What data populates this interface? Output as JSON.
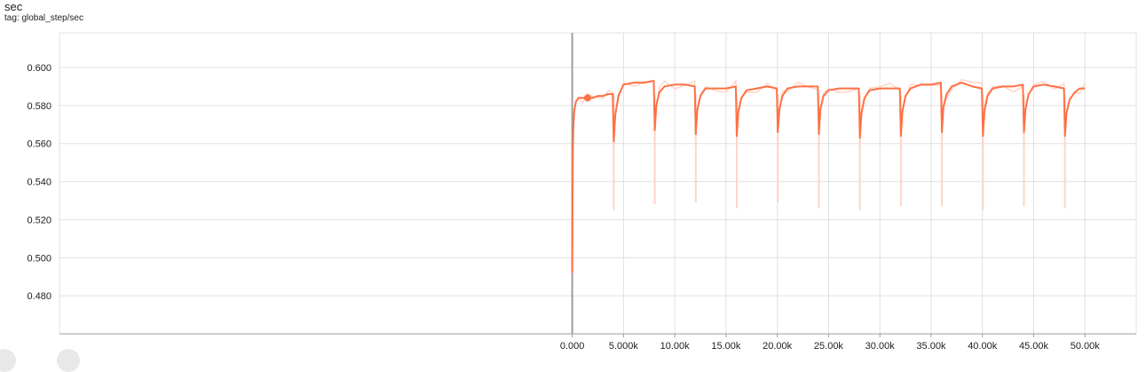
{
  "card": {
    "title": "sec",
    "tag": "tag: global_step/sec"
  },
  "colors": {
    "smoothed": "#ff7043",
    "raw": "#ffd5c7",
    "grid": "#e0e0e0",
    "axis": "#9e9e9e"
  },
  "chart_data": {
    "type": "line",
    "title": "sec",
    "xlabel": "",
    "ylabel": "",
    "xlim": [
      -50000,
      55000
    ],
    "ylim": [
      0.46,
      0.6182
    ],
    "grid": true,
    "legend": "none",
    "x_ticks": [
      0,
      5000,
      10000,
      15000,
      20000,
      25000,
      30000,
      35000,
      40000,
      45000,
      50000
    ],
    "x_tick_labels": [
      "0.000",
      "5.000k",
      "10.00k",
      "15.00k",
      "20.00k",
      "25.00k",
      "30.00k",
      "35.00k",
      "40.00k",
      "45.00k",
      "50.00k"
    ],
    "y_ticks": [
      0.48,
      0.5,
      0.52,
      0.54,
      0.56,
      0.58,
      0.6
    ],
    "y_tick_labels": [
      "0.480",
      "0.500",
      "0.520",
      "0.540",
      "0.560",
      "0.580",
      "0.600"
    ],
    "restart_steps": [
      0,
      4000,
      8000,
      12000,
      16000,
      20000,
      24000,
      28000,
      32000,
      36000,
      40000,
      44000,
      48000
    ],
    "series": [
      {
        "role": "smoothed",
        "x": [
          0,
          50,
          100,
          200,
          350,
          600,
          1000,
          1500,
          2000,
          2500,
          3000,
          3500,
          3950,
          4050,
          4200,
          4500,
          5000,
          6000,
          7000,
          7950,
          8050,
          8200,
          8500,
          9000,
          10000,
          11000,
          11950,
          12050,
          12200,
          12500,
          13000,
          14000,
          15000,
          15950,
          16050,
          16200,
          16500,
          17000,
          18000,
          19000,
          19950,
          20050,
          20200,
          20500,
          21000,
          22000,
          23000,
          23950,
          24050,
          24200,
          24500,
          25000,
          26000,
          27000,
          27950,
          28050,
          28200,
          28500,
          29000,
          30000,
          31000,
          31950,
          32050,
          32200,
          32500,
          33000,
          34000,
          35000,
          35950,
          36050,
          36200,
          36500,
          37000,
          38000,
          39000,
          39950,
          40050,
          40200,
          40500,
          41000,
          42000,
          43000,
          43950,
          44050,
          44200,
          44500,
          45000,
          46000,
          47000,
          47950,
          48050,
          48200,
          48500,
          49000,
          49500,
          50000
        ],
        "y": [
          0.492,
          0.55,
          0.568,
          0.577,
          0.582,
          0.584,
          0.584,
          0.584,
          0.584,
          0.585,
          0.585,
          0.586,
          0.586,
          0.561,
          0.575,
          0.585,
          0.591,
          0.592,
          0.592,
          0.593,
          0.567,
          0.58,
          0.587,
          0.59,
          0.591,
          0.591,
          0.59,
          0.565,
          0.578,
          0.585,
          0.589,
          0.589,
          0.589,
          0.59,
          0.564,
          0.577,
          0.584,
          0.588,
          0.589,
          0.59,
          0.589,
          0.566,
          0.578,
          0.585,
          0.589,
          0.59,
          0.59,
          0.59,
          0.565,
          0.578,
          0.585,
          0.588,
          0.589,
          0.589,
          0.589,
          0.563,
          0.576,
          0.584,
          0.588,
          0.589,
          0.589,
          0.589,
          0.564,
          0.577,
          0.585,
          0.589,
          0.591,
          0.591,
          0.592,
          0.566,
          0.579,
          0.586,
          0.59,
          0.592,
          0.59,
          0.589,
          0.564,
          0.577,
          0.585,
          0.589,
          0.59,
          0.59,
          0.591,
          0.566,
          0.578,
          0.586,
          0.59,
          0.591,
          0.59,
          0.589,
          0.564,
          0.576,
          0.583,
          0.587,
          0.589,
          0.589
        ]
      },
      {
        "role": "raw",
        "spike_x": [
          4050,
          8050,
          12050,
          16050,
          20050,
          24050,
          28050,
          32050,
          36050,
          40050,
          44050,
          48050
        ],
        "spike_y": [
          0.525,
          0.528,
          0.529,
          0.526,
          0.529,
          0.526,
          0.525,
          0.527,
          0.527,
          0.525,
          0.527,
          0.526
        ]
      }
    ],
    "highlight_point": {
      "x": 1500,
      "y": 0.584
    }
  }
}
